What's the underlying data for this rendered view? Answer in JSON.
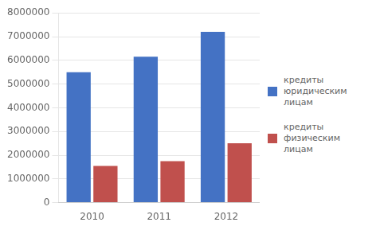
{
  "chart_data": {
    "type": "bar",
    "categories": [
      "2010",
      "2011",
      "2012"
    ],
    "series": [
      {
        "name": "кредиты юридическим\nлицам",
        "color": "#4472C4",
        "values": [
          5500000,
          6150000,
          7200000
        ]
      },
      {
        "name": "кредиты физическим\nлицам",
        "color": "#C0504D",
        "values": [
          1550000,
          1750000,
          2500000
        ]
      }
    ],
    "ylim": [
      0,
      8000000
    ],
    "yticks": [
      0,
      1000000,
      2000000,
      3000000,
      4000000,
      5000000,
      6000000,
      7000000,
      8000000
    ],
    "grid": true,
    "legend": "right"
  }
}
